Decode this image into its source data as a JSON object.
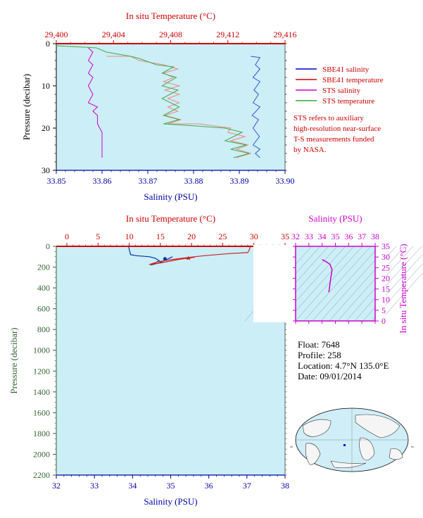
{
  "chart_data": [
    {
      "type": "line",
      "title": "",
      "x_top_label": "In situ Temperature (°C)",
      "x_top_ticks": [
        "29,400",
        "29,404",
        "29,408",
        "29,412",
        "29,416"
      ],
      "x_top_range": [
        29.4,
        29.416
      ],
      "x_bottom_label": "Salinity (PSU)",
      "x_bottom_ticks": [
        "33.85",
        "33.86",
        "33.87",
        "33.88",
        "33.89",
        "33.90"
      ],
      "x_bottom_range": [
        33.85,
        33.9
      ],
      "ylabel": "Pressure (decibar)",
      "y_ticks": [
        "0",
        "10",
        "20",
        "30"
      ],
      "y_range": [
        0,
        30
      ],
      "y_reversed": true,
      "legend": [
        {
          "name": "SBE41 salinity",
          "color": "#0000cc"
        },
        {
          "name": "SBE41 temperature",
          "color": "#cc0000"
        },
        {
          "name": "STS salinity",
          "color": "#cc00cc"
        },
        {
          "name": "STS temperature",
          "color": "#33aa33"
        }
      ],
      "note": [
        "STS refers to auxiliary",
        "high-resolution near-surface",
        "T-S measurements funded",
        "by NASA."
      ],
      "series": [
        {
          "name": "SBE41 salinity",
          "axis": "salinity",
          "color": "#3355cc",
          "points": [
            [
              33.8925,
              3
            ],
            [
              33.8945,
              3.3
            ],
            [
              33.8935,
              5
            ],
            [
              33.8945,
              6
            ],
            [
              33.893,
              8
            ],
            [
              33.8945,
              9
            ],
            [
              33.8932,
              11
            ],
            [
              33.8942,
              12
            ],
            [
              33.893,
              14
            ],
            [
              33.8945,
              15
            ],
            [
              33.8928,
              17
            ],
            [
              33.8942,
              18
            ],
            [
              33.893,
              20
            ],
            [
              33.8944,
              22
            ],
            [
              33.893,
              24
            ],
            [
              33.8945,
              25
            ],
            [
              33.8935,
              26
            ],
            [
              33.8945,
              27
            ]
          ]
        },
        {
          "name": "SBE41 temperature",
          "axis": "temperature",
          "color": "#ee8888",
          "points": [
            [
              29.4035,
              3
            ],
            [
              29.4052,
              3
            ],
            [
              29.4058,
              4
            ],
            [
              29.4075,
              5
            ],
            [
              29.4085,
              6
            ],
            [
              29.4075,
              7
            ],
            [
              29.4082,
              8
            ],
            [
              29.4075,
              9
            ],
            [
              29.4086,
              10
            ],
            [
              29.4076,
              11
            ],
            [
              29.4086,
              12
            ],
            [
              29.4078,
              13
            ],
            [
              29.4086,
              14
            ],
            [
              29.4078,
              15
            ],
            [
              29.4085,
              16
            ],
            [
              29.4076,
              17
            ],
            [
              29.4087,
              18
            ],
            [
              29.4078,
              19
            ],
            [
              29.41,
              19
            ],
            [
              29.4122,
              20
            ],
            [
              29.412,
              21
            ],
            [
              29.4132,
              22
            ],
            [
              29.4122,
              23
            ],
            [
              29.4134,
              24
            ],
            [
              29.4126,
              25
            ],
            [
              29.4136,
              26
            ],
            [
              29.4126,
              27
            ]
          ]
        },
        {
          "name": "STS salinity",
          "axis": "salinity",
          "color": "#cc00cc",
          "points": [
            [
              33.857,
              1
            ],
            [
              33.858,
              2
            ],
            [
              33.857,
              4
            ],
            [
              33.858,
              5
            ],
            [
              33.857,
              7
            ],
            [
              33.858,
              8
            ],
            [
              33.857,
              10
            ],
            [
              33.858,
              12
            ],
            [
              33.857,
              14
            ],
            [
              33.859,
              15
            ],
            [
              33.858,
              16
            ],
            [
              33.859,
              17
            ],
            [
              33.859,
              19
            ],
            [
              33.86,
              21
            ],
            [
              33.86,
              23
            ],
            [
              33.86,
              25
            ],
            [
              33.86,
              27
            ]
          ]
        },
        {
          "name": "STS temperature",
          "axis": "temperature",
          "color": "#44aa44",
          "points": [
            [
              29.4,
              0.5
            ],
            [
              29.4028,
              1
            ],
            [
              29.4035,
              2
            ],
            [
              29.4052,
              3
            ],
            [
              29.4058,
              3.5
            ],
            [
              29.407,
              5
            ],
            [
              29.4082,
              5.5
            ],
            [
              29.4074,
              7
            ],
            [
              29.4084,
              8
            ],
            [
              29.4074,
              10
            ],
            [
              29.4085,
              11
            ],
            [
              29.4074,
              13
            ],
            [
              29.4086,
              15
            ],
            [
              29.4075,
              17
            ],
            [
              29.4086,
              18
            ],
            [
              29.4075,
              19
            ],
            [
              29.4098,
              19.5
            ],
            [
              29.4118,
              20
            ],
            [
              29.413,
              21
            ],
            [
              29.4118,
              23
            ],
            [
              29.4133,
              24
            ],
            [
              29.4122,
              25
            ],
            [
              29.4135,
              26
            ],
            [
              29.4124,
              27
            ]
          ]
        }
      ]
    },
    {
      "type": "line",
      "title": "",
      "x_top_label": "In situ Temperature (°C)",
      "x_top_ticks": [
        "0",
        "5",
        "10",
        "15",
        "20",
        "25",
        "30",
        "35"
      ],
      "x_top_range": [
        0,
        35
      ],
      "x_bottom_label": "Salinity (PSU)",
      "x_bottom_ticks": [
        "32",
        "33",
        "34",
        "35",
        "36",
        "37",
        "38"
      ],
      "x_bottom_range": [
        32,
        38
      ],
      "ylabel": "Pressure (decibar)",
      "y_ticks": [
        "0",
        "200",
        "400",
        "600",
        "800",
        "1000",
        "1200",
        "1400",
        "1600",
        "1800",
        "2000",
        "2200"
      ],
      "y_range": [
        0,
        2200
      ],
      "y_reversed": true,
      "series": [
        {
          "name": "salinity",
          "axis": "salinity",
          "color": "#0033aa",
          "points": [
            [
              33.9,
              5
            ],
            [
              33.92,
              40
            ],
            [
              33.95,
              80
            ],
            [
              34.1,
              90
            ],
            [
              34.45,
              100
            ],
            [
              34.6,
              115
            ],
            [
              34.7,
              140
            ],
            [
              34.55,
              165
            ],
            [
              34.48,
              180
            ],
            [
              34.7,
              160
            ],
            [
              34.9,
              125
            ],
            [
              35.05,
              100
            ]
          ],
          "marker": [
            34.85,
            120
          ]
        },
        {
          "name": "temperature",
          "axis": "temperature",
          "color": "#cc2222",
          "points": [
            [
              29.4,
              2
            ],
            [
              29.3,
              30
            ],
            [
              29.0,
              60
            ],
            [
              26.0,
              70
            ],
            [
              22.0,
              90
            ],
            [
              19.0,
              110
            ],
            [
              16.5,
              130
            ],
            [
              14.5,
              150
            ],
            [
              13.2,
              175
            ],
            [
              15.0,
              160
            ],
            [
              18.0,
              125
            ],
            [
              20.5,
              105
            ]
          ],
          "marker": [
            19.5,
            113
          ]
        }
      ]
    },
    {
      "type": "scatter",
      "title": "",
      "x_top_label": "Salinity (PSU)",
      "x_ticks": [
        "32",
        "33",
        "34",
        "35",
        "36",
        "37",
        "38"
      ],
      "x_range": [
        32,
        38
      ],
      "ylabel": "In situ Temperature (°C)",
      "y_ticks": [
        "0",
        "5",
        "10",
        "15",
        "20",
        "25",
        "30",
        "35"
      ],
      "y_range": [
        0,
        35
      ],
      "series": [
        {
          "name": "T-S",
          "color": "#cc00cc",
          "points": [
            [
              34.0,
              28.8
            ],
            [
              34.3,
              27.8
            ],
            [
              34.6,
              26.5
            ],
            [
              34.75,
              24
            ],
            [
              34.7,
              22
            ],
            [
              34.65,
              20
            ],
            [
              34.6,
              18
            ],
            [
              34.55,
              15
            ],
            [
              34.5,
              13.5
            ]
          ]
        }
      ]
    }
  ],
  "info": {
    "float": "Float:  7648",
    "profile": "Profile:  258",
    "location": "Location:  4.7°N  135.0°E",
    "date": "Date:  09/01/2014"
  },
  "colors": {
    "plot_bg": "#cceef7",
    "temp_axis": "#cc0000",
    "sal_axis": "#0000aa",
    "pres_axis": "#336633",
    "ts_axis": "#cc00cc"
  }
}
